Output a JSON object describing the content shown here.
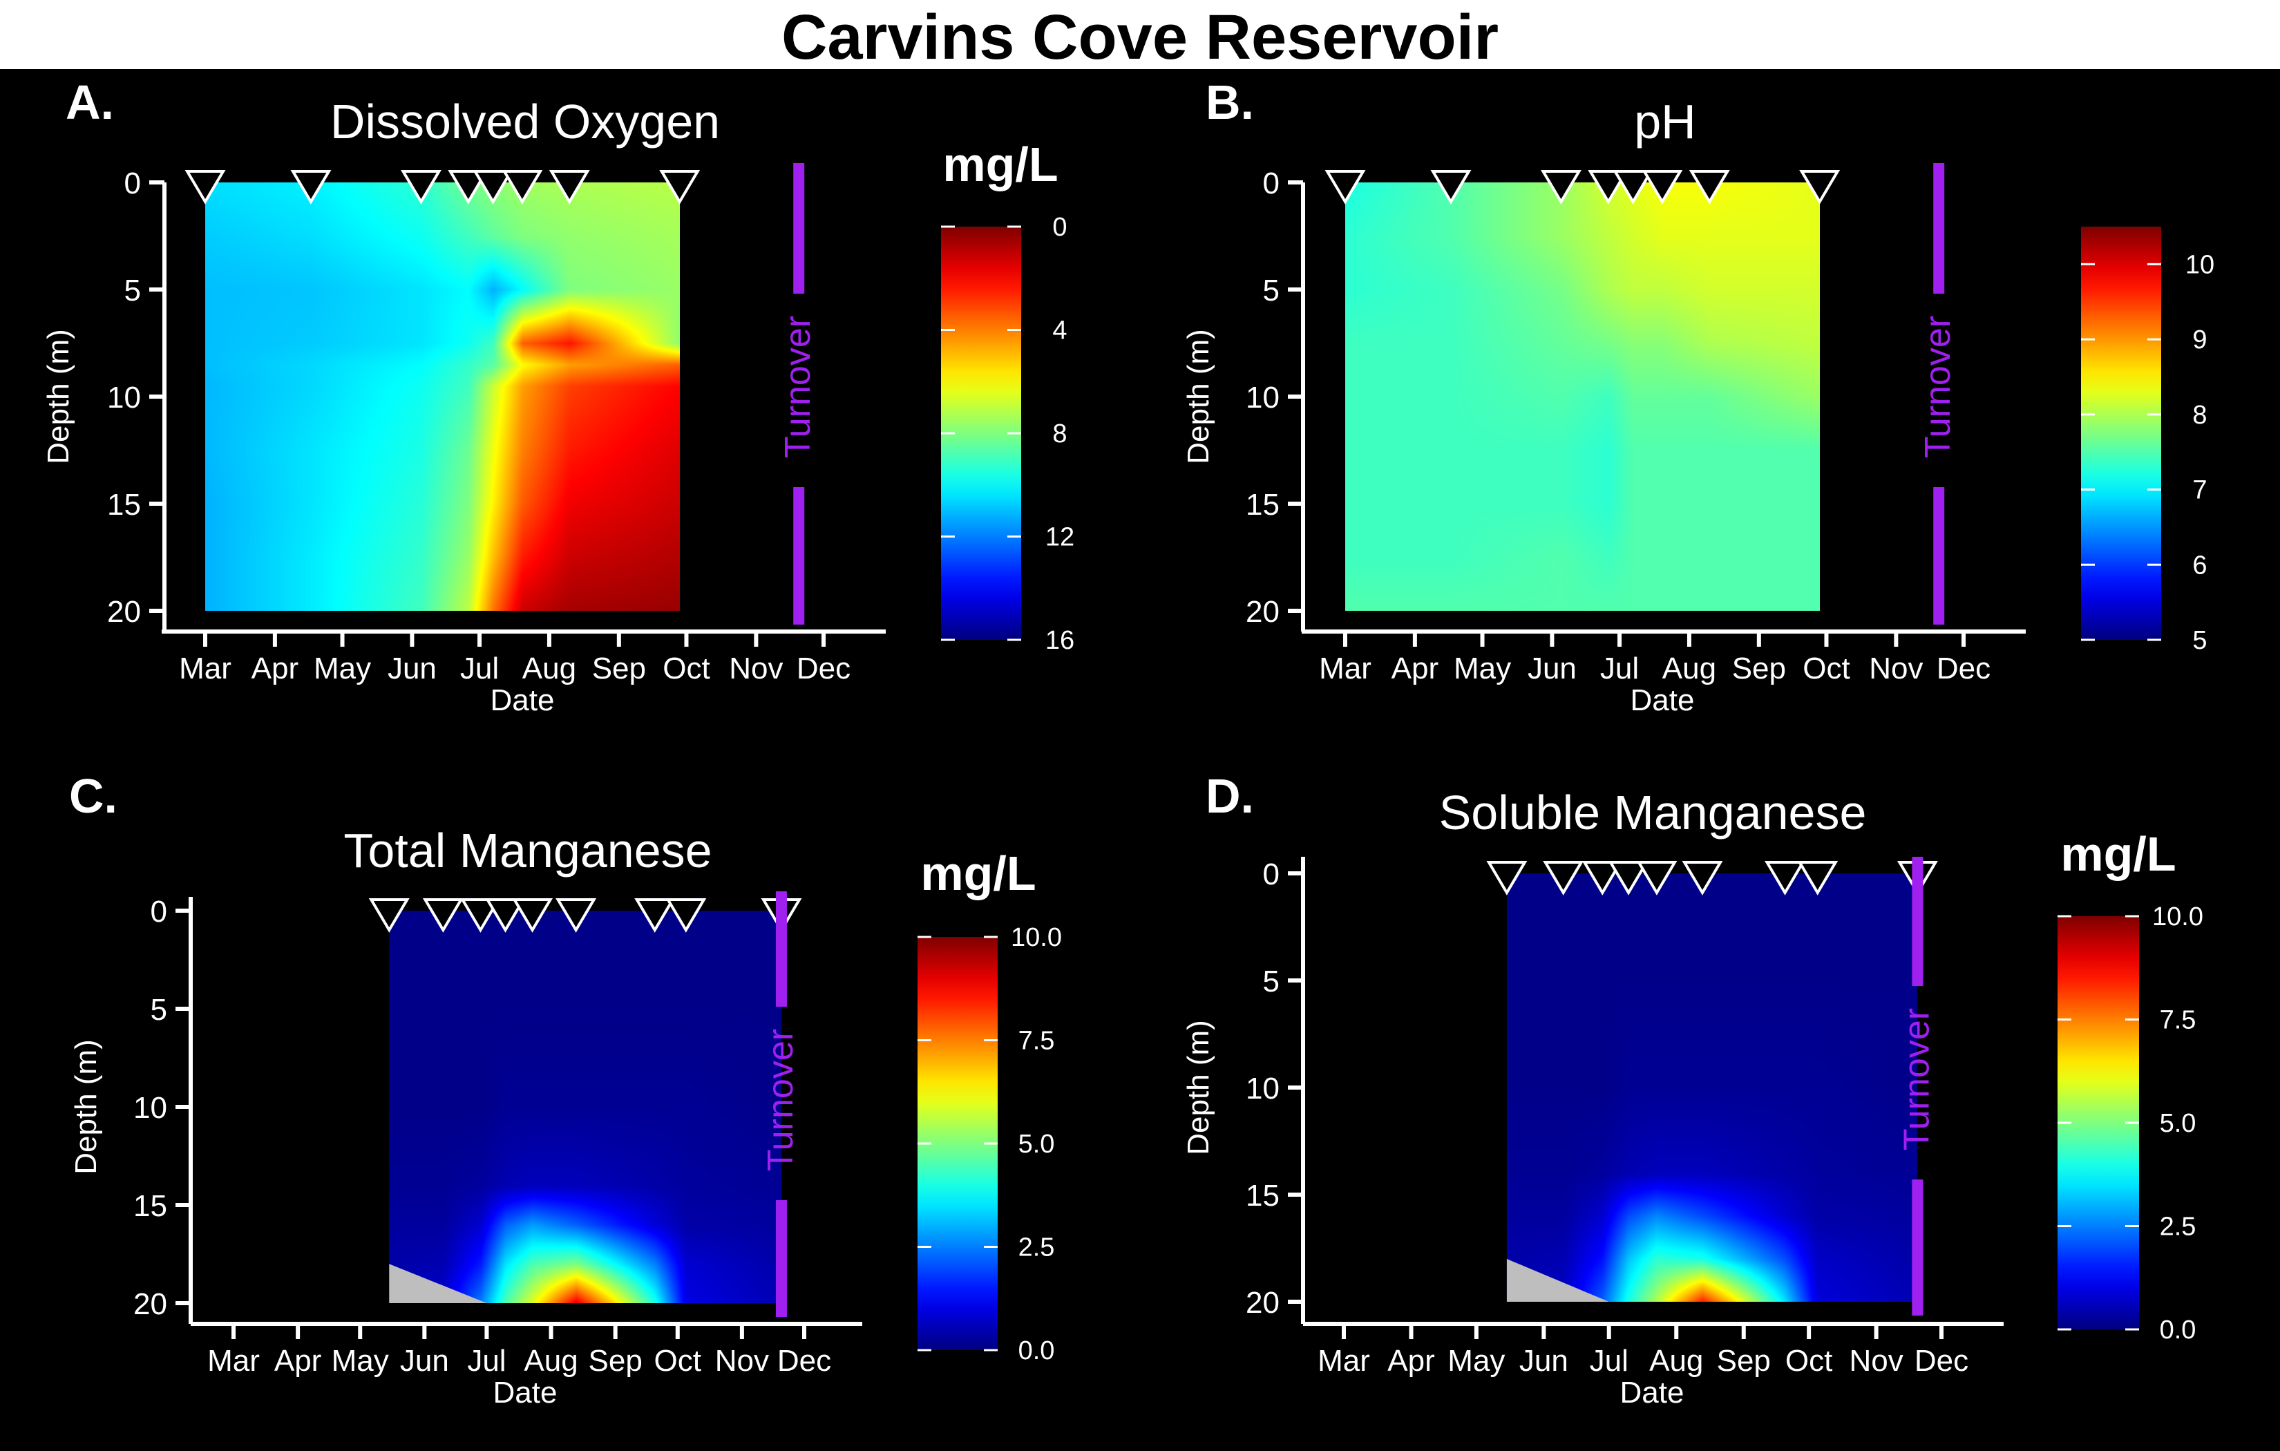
{
  "title": "Carvins Cove Reservoir",
  "colors": {
    "background": "#000000",
    "foreground": "#ffffff",
    "turnover": "#a020f0",
    "no_data": "#bebebe",
    "jet": [
      "#00007f",
      "#0000ff",
      "#007fff",
      "#00ffff",
      "#7fff7f",
      "#ffff00",
      "#ff7f00",
      "#ff0000",
      "#7f0000"
    ]
  },
  "chart_data": [
    {
      "id": "A",
      "panel_label": "A.",
      "type": "heatmap",
      "title": "Dissolved Oxygen",
      "xlabel": "Date",
      "ylabel": "Depth (m)",
      "x_tick_labels": [
        "Mar",
        "Apr",
        "May",
        "Jun",
        "Jul",
        "Aug",
        "Sep",
        "Oct",
        "Nov",
        "Dec"
      ],
      "y_ticks": [
        0,
        5,
        10,
        15,
        20
      ],
      "ylim": [
        0,
        20
      ],
      "y_inverted": true,
      "colorbar": {
        "title": "mg/L",
        "min": 0,
        "max": 16,
        "ticks": [
          0,
          4,
          8,
          12,
          16
        ],
        "tick_labels": [
          "0",
          "4",
          "8",
          "12",
          "16"
        ],
        "reversed": true
      },
      "sample_dates": [
        "Mar 1",
        "Apr 17",
        "Jun 5",
        "Jun 26",
        "Jul 7",
        "Jul 20",
        "Aug 10",
        "Sep 28"
      ],
      "turnover": {
        "date": "Nov 20",
        "label": "Turnover"
      },
      "depths": [
        0,
        2.5,
        5,
        7.5,
        8.5,
        9.5,
        12.5,
        15,
        17.5,
        20
      ],
      "grid": [
        [
          10.5,
          10.2,
          9.3,
          8.2,
          7.8,
          7.5,
          7.3,
          7.1
        ],
        [
          10.8,
          10.5,
          9.8,
          9.0,
          8.5,
          8.0,
          7.7,
          7.4
        ],
        [
          11.0,
          10.9,
          10.4,
          10.0,
          11.2,
          10.0,
          8.0,
          7.6
        ],
        [
          11.0,
          10.8,
          10.4,
          9.8,
          9.0,
          3.5,
          2.3,
          7.8
        ],
        [
          11.0,
          10.6,
          10.0,
          9.2,
          8.6,
          6.0,
          4.5,
          3.5
        ],
        [
          11.1,
          10.6,
          9.8,
          9.0,
          6.8,
          4.5,
          3.0,
          2.0
        ],
        [
          11.1,
          10.4,
          9.6,
          8.3,
          6.2,
          4.0,
          2.4,
          1.5
        ],
        [
          11.2,
          10.4,
          9.4,
          8.0,
          5.8,
          3.4,
          1.8,
          1.2
        ],
        [
          11.2,
          10.3,
          9.2,
          7.6,
          5.0,
          2.4,
          1.2,
          0.8
        ],
        [
          11.2,
          10.3,
          9.0,
          7.0,
          3.8,
          1.2,
          0.6,
          0.4
        ]
      ]
    },
    {
      "id": "B",
      "panel_label": "B.",
      "type": "heatmap",
      "title": "pH",
      "xlabel": "Date",
      "ylabel": "Depth (m)",
      "x_tick_labels": [
        "Mar",
        "Apr",
        "May",
        "Jun",
        "Jul",
        "Aug",
        "Sep",
        "Oct",
        "Nov",
        "Dec"
      ],
      "y_ticks": [
        0,
        5,
        10,
        15,
        20
      ],
      "ylim": [
        0,
        20
      ],
      "y_inverted": true,
      "colorbar": {
        "title": "",
        "min": 5,
        "max": 10.5,
        "ticks": [
          5,
          6,
          7,
          8,
          9,
          10
        ],
        "tick_labels": [
          "5",
          "6",
          "7",
          "8",
          "9",
          "10"
        ],
        "reversed": false
      },
      "sample_dates": [
        "Mar 1",
        "Apr 17",
        "Jun 5",
        "Jun 26",
        "Jul 7",
        "Jul 20",
        "Aug 10",
        "Sep 28"
      ],
      "turnover": {
        "date": "Nov 20",
        "label": "Turnover"
      },
      "depths": [
        0,
        2.5,
        5,
        7.5,
        10,
        12.5,
        15,
        17.5,
        20
      ],
      "grid": [
        [
          7.2,
          7.5,
          7.9,
          8.2,
          8.3,
          8.4,
          8.4,
          8.3
        ],
        [
          7.3,
          7.5,
          7.9,
          8.1,
          8.2,
          8.3,
          8.3,
          8.3
        ],
        [
          7.3,
          7.4,
          7.7,
          8.0,
          8.1,
          8.1,
          8.2,
          8.2
        ],
        [
          7.4,
          7.4,
          7.6,
          7.7,
          7.8,
          7.8,
          8.0,
          8.1
        ],
        [
          7.4,
          7.4,
          7.5,
          7.4,
          7.6,
          7.6,
          7.6,
          7.9
        ],
        [
          7.4,
          7.4,
          7.4,
          7.3,
          7.5,
          7.5,
          7.5,
          7.5
        ],
        [
          7.4,
          7.4,
          7.4,
          7.3,
          7.5,
          7.5,
          7.5,
          7.5
        ],
        [
          7.4,
          7.4,
          7.5,
          7.4,
          7.5,
          7.5,
          7.5,
          7.5
        ],
        [
          7.5,
          7.5,
          7.5,
          7.5,
          7.5,
          7.5,
          7.5,
          7.5
        ]
      ]
    },
    {
      "id": "C",
      "panel_label": "C.",
      "type": "heatmap",
      "title": "Total Manganese",
      "xlabel": "Date",
      "ylabel": "Depth (m)",
      "x_tick_labels": [
        "Mar",
        "Apr",
        "May",
        "Jun",
        "Jul",
        "Aug",
        "Sep",
        "Oct",
        "Nov",
        "Dec"
      ],
      "y_ticks": [
        0,
        5,
        10,
        15,
        20
      ],
      "ylim": [
        0,
        20
      ],
      "y_inverted": true,
      "colorbar": {
        "title": "mg/L",
        "min": 0,
        "max": 10,
        "ticks": [
          0,
          2.5,
          5,
          7.5,
          10
        ],
        "tick_labels": [
          "0.0",
          "2.5",
          "5.0",
          "7.5",
          "10.0"
        ],
        "reversed": false
      },
      "sample_dates": [
        "May 15",
        "Jun 10",
        "Jun 28",
        "Jul 10",
        "Jul 23",
        "Aug 13",
        "Sep 20",
        "Oct 5",
        "Nov 20"
      ],
      "turnover": {
        "date": "Nov 20",
        "label": "Turnover"
      },
      "depths": [
        0,
        5,
        10,
        14,
        16,
        18,
        20
      ],
      "grid": [
        [
          0.1,
          0.1,
          0.1,
          0.1,
          0.1,
          0.1,
          0.1,
          0.1,
          0.1
        ],
        [
          0.1,
          0.1,
          0.1,
          0.1,
          0.1,
          0.1,
          0.1,
          0.1,
          0.1
        ],
        [
          0.1,
          0.1,
          0.1,
          0.2,
          0.2,
          0.2,
          0.2,
          0.2,
          0.1
        ],
        [
          0.2,
          0.2,
          0.3,
          0.5,
          0.6,
          0.6,
          0.4,
          0.3,
          0.2
        ],
        [
          0.3,
          0.3,
          0.8,
          2.2,
          2.8,
          2.2,
          0.9,
          0.4,
          0.3
        ],
        [
          0.4,
          0.5,
          1.5,
          3.5,
          4.5,
          5.0,
          2.5,
          0.8,
          0.4
        ],
        [
          0.5,
          0.8,
          2.5,
          4.5,
          6.0,
          9.0,
          4.0,
          1.0,
          0.5
        ]
      ],
      "no_data_region": {
        "start": "May 15",
        "end": "Jul 1",
        "depth_from": 18,
        "depth_to": 20
      }
    },
    {
      "id": "D",
      "panel_label": "D.",
      "type": "heatmap",
      "title": "Soluble Manganese",
      "xlabel": "Date",
      "ylabel": "Depth (m)",
      "x_tick_labels": [
        "Mar",
        "Apr",
        "May",
        "Jun",
        "Jul",
        "Aug",
        "Sep",
        "Oct",
        "Nov",
        "Dec"
      ],
      "y_ticks": [
        0,
        5,
        10,
        15,
        20
      ],
      "ylim": [
        0,
        20
      ],
      "y_inverted": true,
      "colorbar": {
        "title": "mg/L",
        "min": 0,
        "max": 10,
        "ticks": [
          0,
          2.5,
          5,
          7.5,
          10
        ],
        "tick_labels": [
          "0.0",
          "2.5",
          "5.0",
          "7.5",
          "10.0"
        ],
        "reversed": false
      },
      "sample_dates": [
        "May 15",
        "Jun 10",
        "Jun 28",
        "Jul 10",
        "Jul 23",
        "Aug 13",
        "Sep 20",
        "Oct 5",
        "Nov 20"
      ],
      "turnover": {
        "date": "Nov 20",
        "label": "Turnover"
      },
      "depths": [
        0,
        5,
        10,
        14,
        16,
        18,
        20
      ],
      "grid": [
        [
          0.1,
          0.1,
          0.1,
          0.1,
          0.1,
          0.1,
          0.1,
          0.1,
          0.1
        ],
        [
          0.1,
          0.1,
          0.1,
          0.1,
          0.1,
          0.1,
          0.1,
          0.1,
          0.1
        ],
        [
          0.1,
          0.1,
          0.1,
          0.2,
          0.2,
          0.2,
          0.2,
          0.2,
          0.1
        ],
        [
          0.2,
          0.2,
          0.3,
          0.5,
          0.6,
          0.6,
          0.4,
          0.3,
          0.2
        ],
        [
          0.3,
          0.3,
          0.8,
          2.0,
          2.6,
          2.0,
          0.8,
          0.4,
          0.3
        ],
        [
          0.4,
          0.5,
          1.4,
          3.2,
          4.2,
          4.0,
          2.0,
          0.7,
          0.4
        ],
        [
          0.5,
          0.7,
          2.2,
          4.0,
          5.5,
          8.5,
          3.5,
          0.9,
          0.5
        ]
      ],
      "no_data_region": {
        "start": "May 15",
        "end": "Jul 1",
        "depth_from": 18,
        "depth_to": 20
      }
    }
  ]
}
